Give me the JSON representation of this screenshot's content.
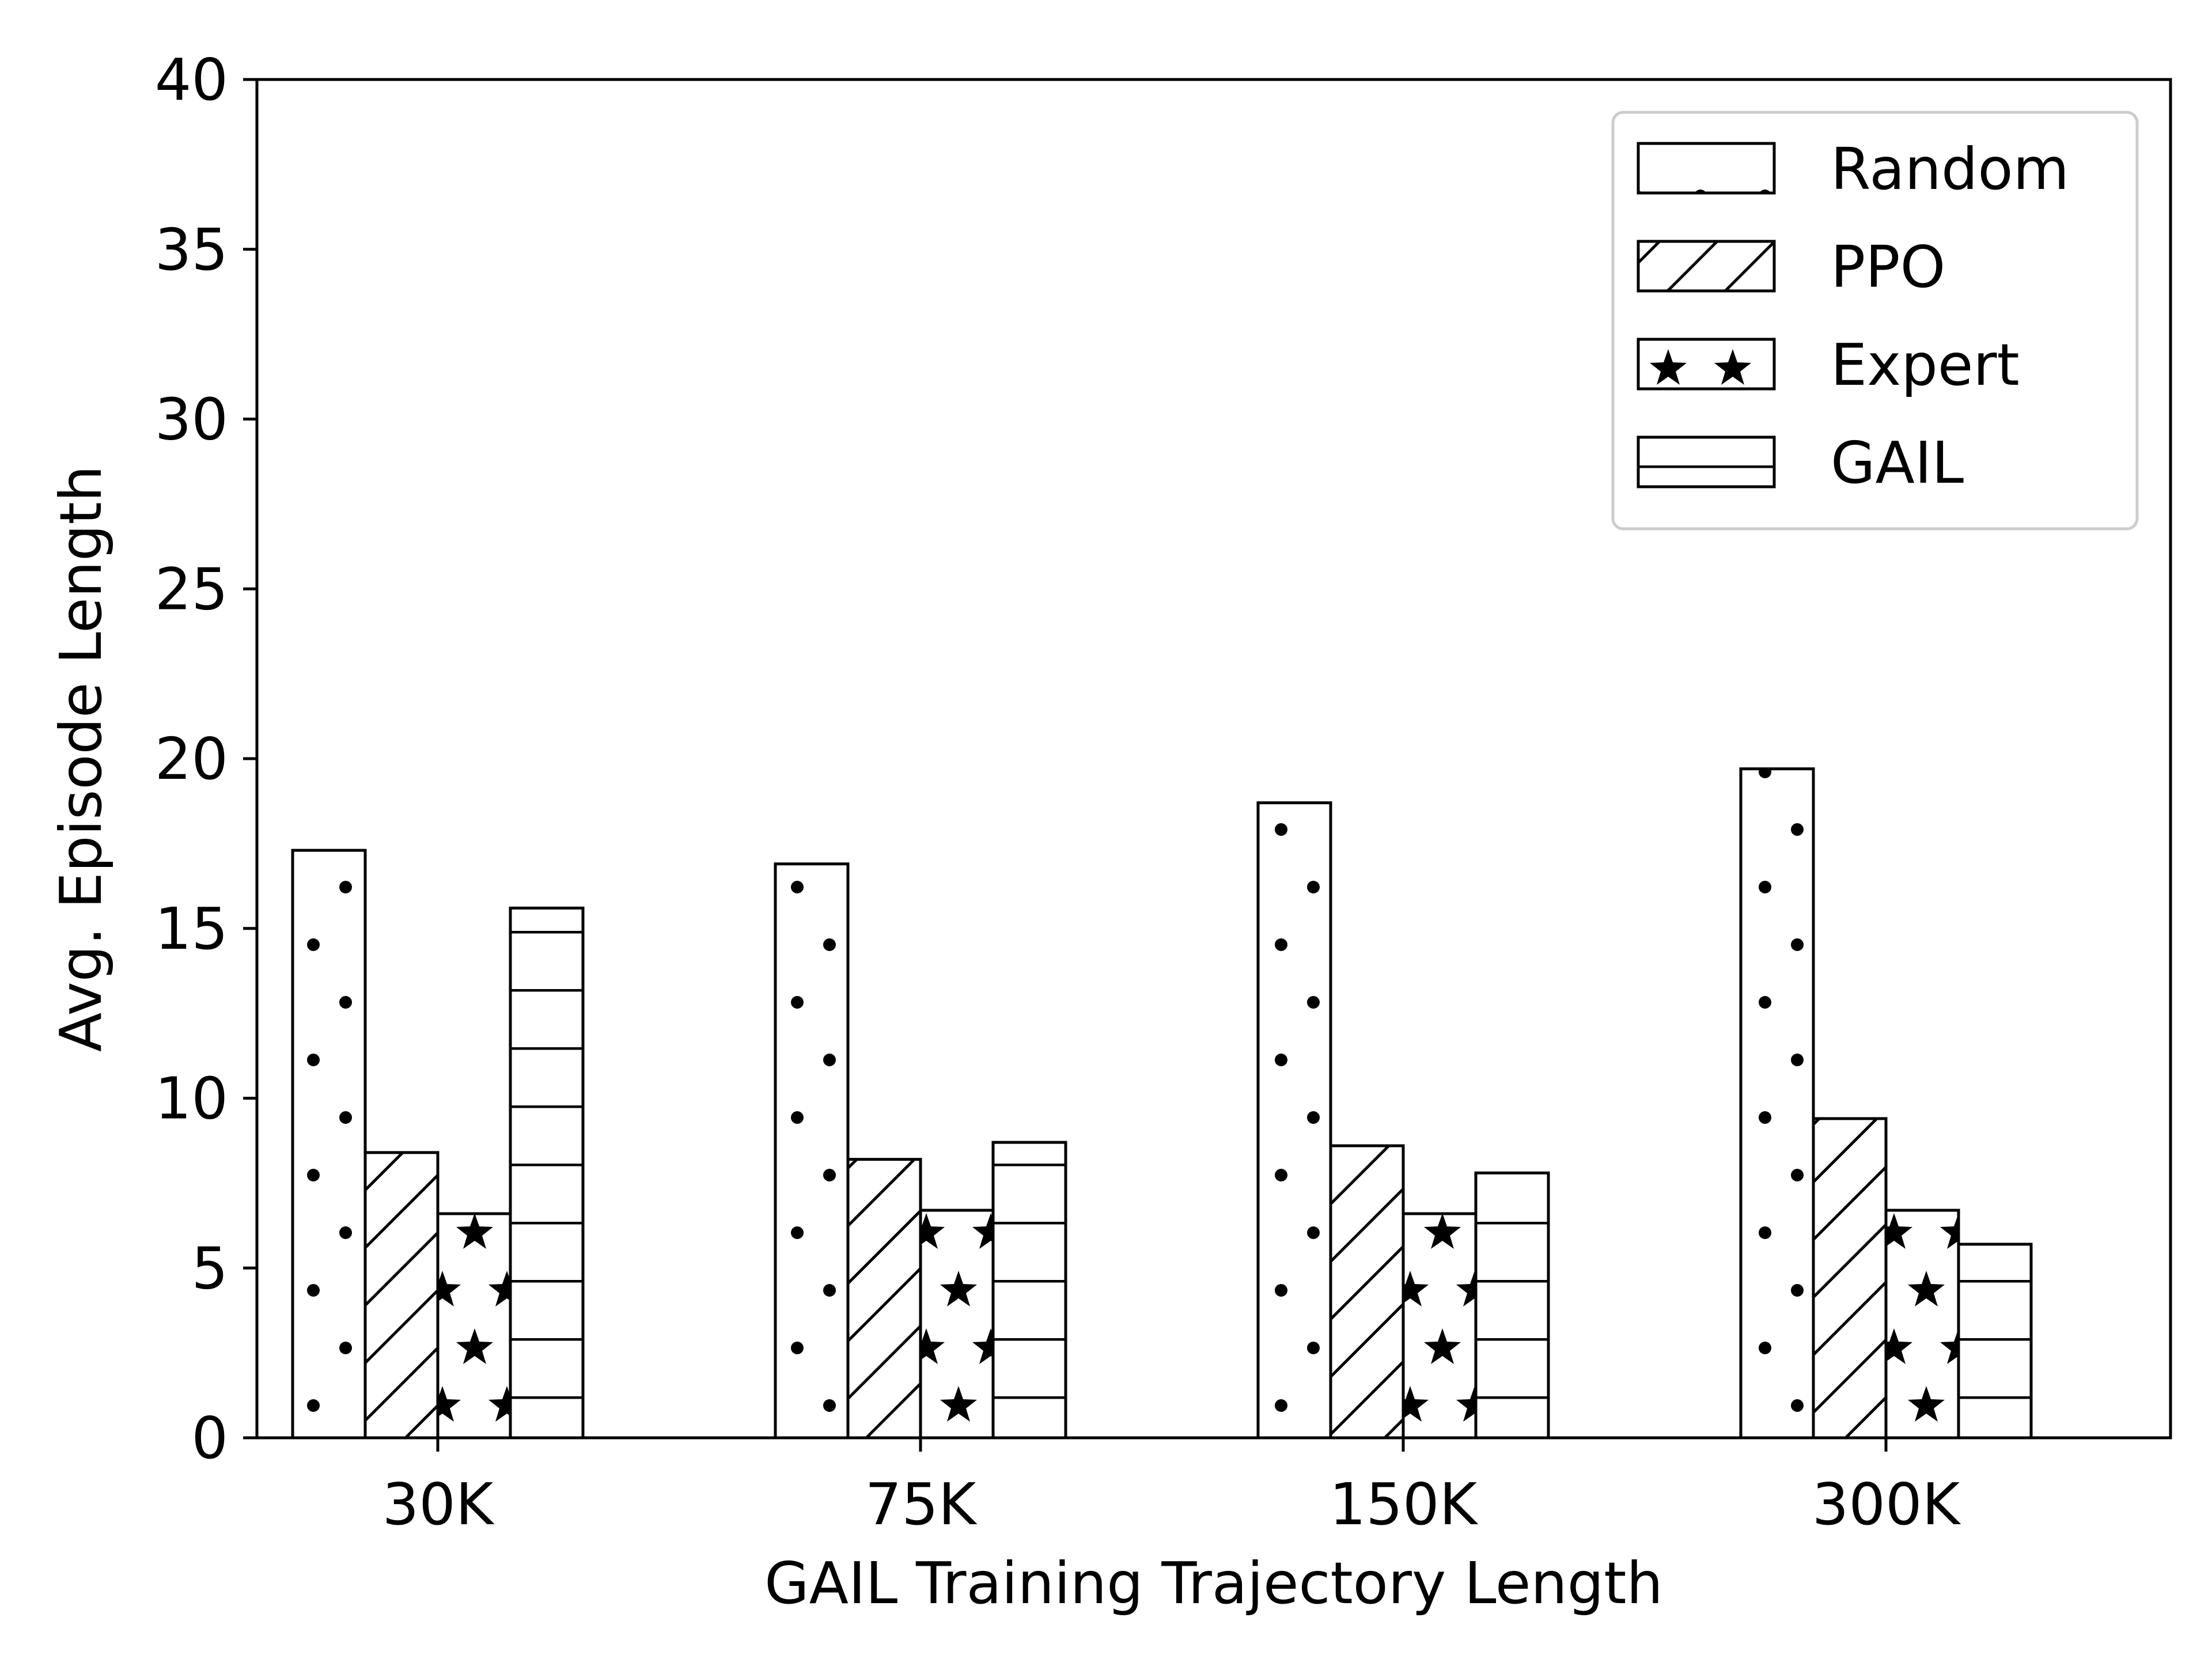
{
  "chart_data": {
    "type": "bar",
    "title": "",
    "xlabel": "GAIL Training Trajectory Length",
    "ylabel": "Avg. Episode Length",
    "categories": [
      "30K",
      "75K",
      "150K",
      "300K"
    ],
    "ylim": [
      0,
      40
    ],
    "yticks": [
      0,
      5,
      10,
      15,
      20,
      25,
      30,
      35,
      40
    ],
    "grid": false,
    "legend_position": "top-right",
    "series": [
      {
        "name": "Random",
        "hatch": "dots",
        "values": [
          17.3,
          16.9,
          18.7,
          19.7
        ]
      },
      {
        "name": "PPO",
        "hatch": "diagonal",
        "values": [
          8.4,
          8.2,
          8.6,
          9.4
        ]
      },
      {
        "name": "Expert",
        "hatch": "stars",
        "values": [
          6.6,
          6.7,
          6.6,
          6.7
        ]
      },
      {
        "name": "GAIL",
        "hatch": "horizontal",
        "values": [
          15.6,
          8.7,
          7.8,
          5.7
        ]
      }
    ],
    "colors": {
      "face": "#ffffff",
      "edge": "#000000",
      "legend_frame": "#cccccc"
    }
  }
}
